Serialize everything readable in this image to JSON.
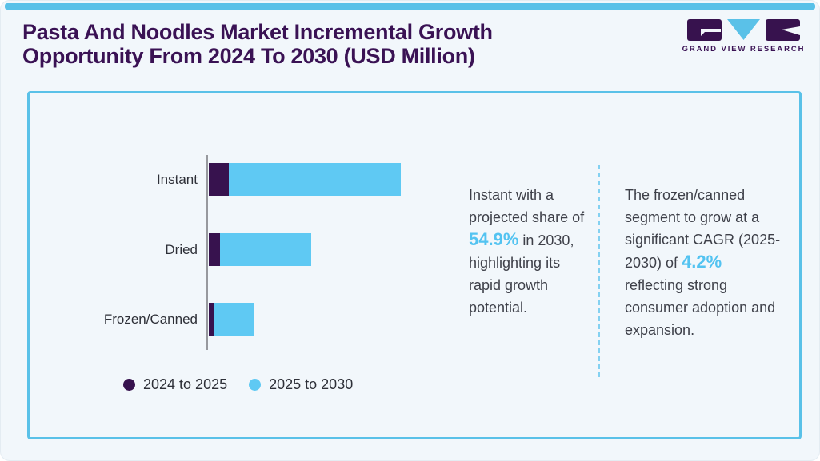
{
  "header": {
    "title": "Pasta And Noodles Market Incremental Growth Opportunity From 2024 To 2030 (USD Million)",
    "brand": "GRAND VIEW RESEARCH"
  },
  "colors": {
    "accent_blue": "#5ac1e8",
    "bar_blue": "#5fc9f3",
    "bar_purple": "#37124e",
    "title_purple": "#3a1254",
    "highlight_blue": "#53c3f1",
    "text_dark": "#3e4049",
    "axis_gray": "#97999e",
    "page_bg": "#f2f7fb"
  },
  "chart_data": {
    "type": "bar",
    "orientation": "horizontal",
    "stacked": true,
    "title": "Pasta And Noodles Market Incremental Growth Opportunity From 2024 To 2030 (USD Million)",
    "categories": [
      "Instant",
      "Dried",
      "Frozen/Canned"
    ],
    "series": [
      {
        "name": "2024 to 2025",
        "color": "#37124e",
        "values": [
          25,
          14,
          7
        ]
      },
      {
        "name": "2025 to 2030",
        "color": "#5fc9f3",
        "values": [
          215,
          114,
          49
        ]
      }
    ],
    "value_unit": "relative bar length in px (value axis unlabeled in source)",
    "xlabel": "",
    "ylabel": "",
    "grid": false,
    "legend_position": "bottom-left"
  },
  "insights": [
    {
      "pre": "Instant with a projected share of ",
      "highlight": "54.9%",
      "post": " in 2030, highlighting its rapid growth potential."
    },
    {
      "pre": "The frozen/canned segment to grow at a significant CAGR (2025-2030) of ",
      "highlight": "4.2%",
      "post": " reflecting strong consumer adoption and expansion."
    }
  ]
}
